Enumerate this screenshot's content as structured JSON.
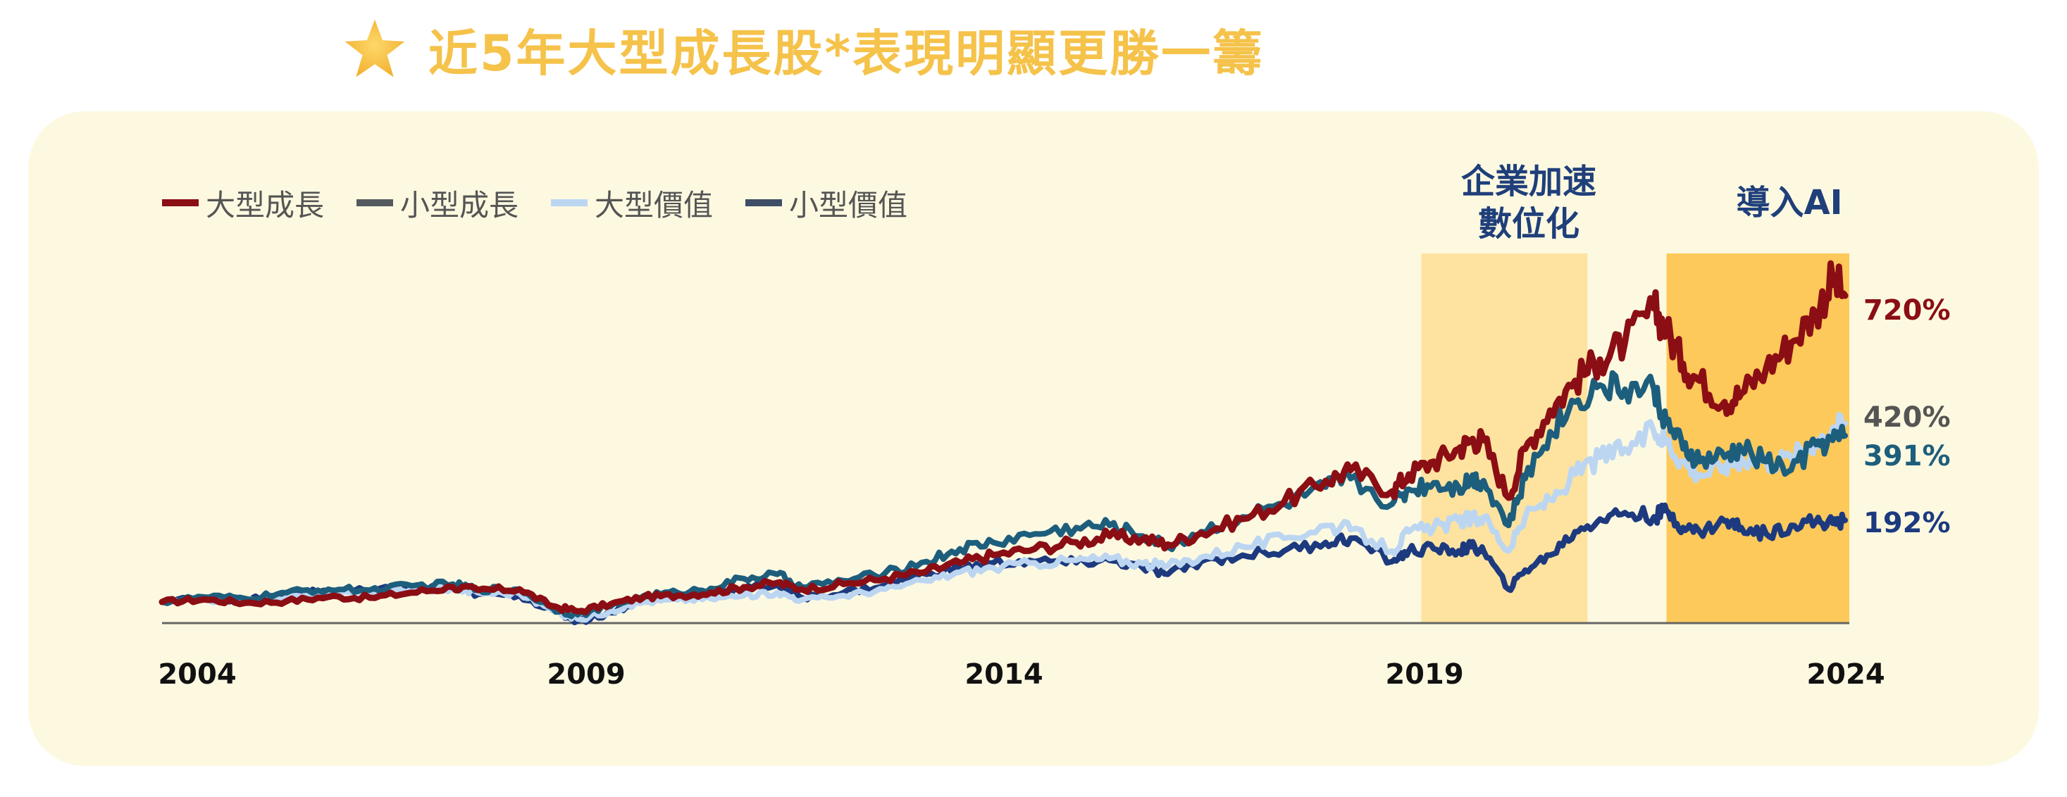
{
  "header": {
    "title": "近5年大型成長股*表現明顯更勝一籌",
    "title_color": "#f5c24a",
    "icon": "star-icon"
  },
  "chart_data": {
    "type": "line",
    "title": "近5年大型成長股*表現明顯更勝一籌",
    "xlabel": "",
    "ylabel": "",
    "x_ticks": [
      "2004",
      "2009",
      "2014",
      "2019",
      "2024"
    ],
    "x_range": [
      2004.0,
      2024.3
    ],
    "y_range": [
      0,
      900
    ],
    "grid": false,
    "legend_position": "top-left",
    "shaded_periods": [
      {
        "label": "企業加速\n數位化",
        "start": 2019.15,
        "end": 2021.15,
        "color": "#fde39f"
      },
      {
        "label": "導入AI",
        "start": 2022.1,
        "end": 2024.3,
        "color": "#fdc95a"
      }
    ],
    "series": [
      {
        "name": "大型成長",
        "color": "#8b0e14",
        "end_label": "720%",
        "points": [
          [
            2004.0,
            0
          ],
          [
            2004.5,
            6
          ],
          [
            2005.0,
            -2
          ],
          [
            2005.5,
            2
          ],
          [
            2006.0,
            12
          ],
          [
            2006.5,
            10
          ],
          [
            2007.0,
            22
          ],
          [
            2007.5,
            35
          ],
          [
            2007.8,
            28
          ],
          [
            2008.3,
            30
          ],
          [
            2008.7,
            -10
          ],
          [
            2009.0,
            -22
          ],
          [
            2009.4,
            -5
          ],
          [
            2009.8,
            12
          ],
          [
            2010.2,
            15
          ],
          [
            2010.6,
            22
          ],
          [
            2011.0,
            35
          ],
          [
            2011.4,
            45
          ],
          [
            2011.7,
            30
          ],
          [
            2012.2,
            42
          ],
          [
            2012.7,
            55
          ],
          [
            2013.2,
            72
          ],
          [
            2013.6,
            92
          ],
          [
            2014.0,
            110
          ],
          [
            2014.5,
            125
          ],
          [
            2015.0,
            140
          ],
          [
            2015.4,
            155
          ],
          [
            2015.8,
            148
          ],
          [
            2016.1,
            135
          ],
          [
            2016.5,
            162
          ],
          [
            2017.0,
            195
          ],
          [
            2017.5,
            235
          ],
          [
            2018.0,
            285
          ],
          [
            2018.3,
            310
          ],
          [
            2018.8,
            260
          ],
          [
            2019.0,
            300
          ],
          [
            2019.3,
            330
          ],
          [
            2019.6,
            360
          ],
          [
            2019.75,
            380
          ],
          [
            2019.9,
            380
          ],
          [
            2020.2,
            245
          ],
          [
            2020.4,
            360
          ],
          [
            2020.7,
            450
          ],
          [
            2021.0,
            520
          ],
          [
            2021.3,
            570
          ],
          [
            2021.6,
            610
          ],
          [
            2021.95,
            690
          ],
          [
            2022.1,
            640
          ],
          [
            2022.3,
            560
          ],
          [
            2022.5,
            520
          ],
          [
            2022.8,
            470
          ],
          [
            2023.0,
            490
          ],
          [
            2023.3,
            550
          ],
          [
            2023.6,
            610
          ],
          [
            2023.9,
            680
          ],
          [
            2024.1,
            760
          ],
          [
            2024.25,
            720
          ]
        ]
      },
      {
        "name": "小型成長",
        "color": "#1d5e7d",
        "end_label": "391%",
        "points": [
          [
            2004.0,
            0
          ],
          [
            2004.5,
            12
          ],
          [
            2005.0,
            8
          ],
          [
            2005.5,
            22
          ],
          [
            2006.0,
            30
          ],
          [
            2006.5,
            28
          ],
          [
            2007.0,
            38
          ],
          [
            2007.5,
            42
          ],
          [
            2007.8,
            30
          ],
          [
            2008.3,
            30
          ],
          [
            2008.7,
            -15
          ],
          [
            2009.0,
            -30
          ],
          [
            2009.4,
            -10
          ],
          [
            2009.8,
            15
          ],
          [
            2010.2,
            22
          ],
          [
            2010.6,
            32
          ],
          [
            2011.0,
            55
          ],
          [
            2011.4,
            65
          ],
          [
            2011.7,
            35
          ],
          [
            2012.2,
            50
          ],
          [
            2012.7,
            68
          ],
          [
            2013.2,
            95
          ],
          [
            2013.6,
            125
          ],
          [
            2014.0,
            140
          ],
          [
            2014.5,
            160
          ],
          [
            2015.0,
            175
          ],
          [
            2015.4,
            180
          ],
          [
            2015.8,
            155
          ],
          [
            2016.1,
            130
          ],
          [
            2016.5,
            165
          ],
          [
            2017.0,
            200
          ],
          [
            2017.5,
            230
          ],
          [
            2018.0,
            270
          ],
          [
            2018.3,
            290
          ],
          [
            2018.8,
            230
          ],
          [
            2019.0,
            265
          ],
          [
            2019.3,
            280
          ],
          [
            2019.6,
            270
          ],
          [
            2019.75,
            290
          ],
          [
            2019.9,
            285
          ],
          [
            2020.2,
            180
          ],
          [
            2020.4,
            290
          ],
          [
            2020.7,
            400
          ],
          [
            2021.0,
            470
          ],
          [
            2021.3,
            510
          ],
          [
            2021.6,
            500
          ],
          [
            2021.95,
            500
          ],
          [
            2022.1,
            420
          ],
          [
            2022.3,
            360
          ],
          [
            2022.5,
            330
          ],
          [
            2022.8,
            340
          ],
          [
            2023.0,
            360
          ],
          [
            2023.3,
            330
          ],
          [
            2023.6,
            310
          ],
          [
            2023.9,
            370
          ],
          [
            2024.1,
            380
          ],
          [
            2024.25,
            391
          ]
        ]
      },
      {
        "name": "大型價值",
        "color": "#bcd6f2",
        "end_label": "420%",
        "points": [
          [
            2004.0,
            0
          ],
          [
            2004.5,
            5
          ],
          [
            2005.0,
            2
          ],
          [
            2005.5,
            10
          ],
          [
            2006.0,
            18
          ],
          [
            2006.5,
            20
          ],
          [
            2007.0,
            30
          ],
          [
            2007.5,
            32
          ],
          [
            2007.8,
            22
          ],
          [
            2008.3,
            20
          ],
          [
            2008.7,
            -20
          ],
          [
            2009.0,
            -40
          ],
          [
            2009.4,
            -20
          ],
          [
            2009.8,
            0
          ],
          [
            2010.2,
            5
          ],
          [
            2010.6,
            8
          ],
          [
            2011.0,
            15
          ],
          [
            2011.4,
            22
          ],
          [
            2011.7,
            5
          ],
          [
            2012.2,
            15
          ],
          [
            2012.7,
            30
          ],
          [
            2013.2,
            50
          ],
          [
            2013.6,
            70
          ],
          [
            2014.0,
            80
          ],
          [
            2014.5,
            92
          ],
          [
            2015.0,
            98
          ],
          [
            2015.4,
            102
          ],
          [
            2015.8,
            90
          ],
          [
            2016.1,
            85
          ],
          [
            2016.5,
            105
          ],
          [
            2017.0,
            130
          ],
          [
            2017.5,
            150
          ],
          [
            2018.0,
            180
          ],
          [
            2018.3,
            170
          ],
          [
            2018.8,
            120
          ],
          [
            2019.0,
            165
          ],
          [
            2019.3,
            175
          ],
          [
            2019.6,
            190
          ],
          [
            2019.75,
            195
          ],
          [
            2019.9,
            200
          ],
          [
            2020.2,
            120
          ],
          [
            2020.4,
            200
          ],
          [
            2020.7,
            240
          ],
          [
            2021.0,
            300
          ],
          [
            2021.3,
            340
          ],
          [
            2021.6,
            360
          ],
          [
            2021.95,
            400
          ],
          [
            2022.1,
            380
          ],
          [
            2022.3,
            330
          ],
          [
            2022.5,
            300
          ],
          [
            2022.8,
            320
          ],
          [
            2023.0,
            340
          ],
          [
            2023.3,
            330
          ],
          [
            2023.6,
            340
          ],
          [
            2023.9,
            380
          ],
          [
            2024.1,
            410
          ],
          [
            2024.25,
            420
          ]
        ]
      },
      {
        "name": "小型價值",
        "color": "#1d3a7f",
        "end_label": "192%",
        "points": [
          [
            2004.0,
            0
          ],
          [
            2004.5,
            10
          ],
          [
            2005.0,
            5
          ],
          [
            2005.5,
            15
          ],
          [
            2006.0,
            28
          ],
          [
            2006.5,
            25
          ],
          [
            2007.0,
            35
          ],
          [
            2007.5,
            30
          ],
          [
            2007.8,
            18
          ],
          [
            2008.3,
            15
          ],
          [
            2008.7,
            -20
          ],
          [
            2009.0,
            -45
          ],
          [
            2009.4,
            -25
          ],
          [
            2009.8,
            5
          ],
          [
            2010.2,
            15
          ],
          [
            2010.6,
            20
          ],
          [
            2011.0,
            32
          ],
          [
            2011.4,
            40
          ],
          [
            2011.7,
            10
          ],
          [
            2012.2,
            22
          ],
          [
            2012.7,
            40
          ],
          [
            2013.2,
            65
          ],
          [
            2013.6,
            80
          ],
          [
            2014.0,
            92
          ],
          [
            2014.5,
            95
          ],
          [
            2015.0,
            92
          ],
          [
            2015.4,
            98
          ],
          [
            2015.8,
            80
          ],
          [
            2016.1,
            65
          ],
          [
            2016.5,
            95
          ],
          [
            2017.0,
            110
          ],
          [
            2017.5,
            120
          ],
          [
            2018.0,
            140
          ],
          [
            2018.3,
            150
          ],
          [
            2018.8,
            95
          ],
          [
            2019.0,
            120
          ],
          [
            2019.3,
            125
          ],
          [
            2019.6,
            120
          ],
          [
            2019.75,
            130
          ],
          [
            2019.9,
            120
          ],
          [
            2020.2,
            30
          ],
          [
            2020.4,
            75
          ],
          [
            2020.7,
            110
          ],
          [
            2021.0,
            165
          ],
          [
            2021.3,
            195
          ],
          [
            2021.6,
            210
          ],
          [
            2021.95,
            200
          ],
          [
            2022.1,
            215
          ],
          [
            2022.3,
            175
          ],
          [
            2022.5,
            165
          ],
          [
            2022.8,
            190
          ],
          [
            2023.0,
            175
          ],
          [
            2023.3,
            160
          ],
          [
            2023.6,
            180
          ],
          [
            2023.9,
            190
          ],
          [
            2024.1,
            185
          ],
          [
            2024.25,
            192
          ]
        ]
      }
    ]
  }
}
